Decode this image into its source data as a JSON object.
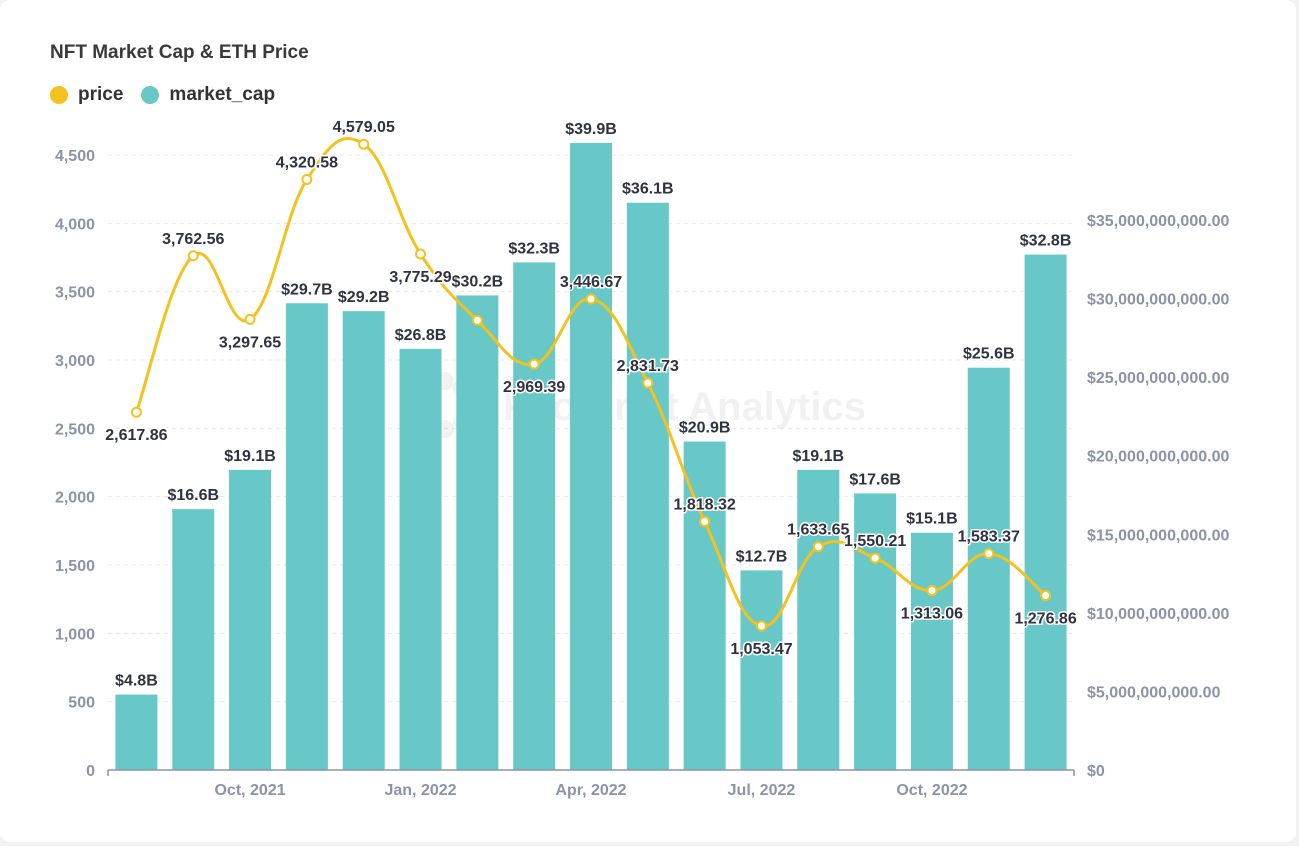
{
  "colors": {
    "price": "#f4c21f",
    "market_cap": "#67c8c7",
    "grid": "#e8e8ee",
    "axis": "#8c93a8"
  },
  "chart_data": {
    "type": "bar+line",
    "title": "NFT Market Cap & ETH Price",
    "legend": [
      {
        "name": "price",
        "color": "#f4c21f"
      },
      {
        "name": "market_cap",
        "color": "#67c8c7"
      }
    ],
    "x_tick_labels": [
      "Oct, 2021",
      "Jan, 2022",
      "Apr, 2022",
      "Jul, 2022",
      "Oct, 2022"
    ],
    "x_tick_indices": [
      2,
      5,
      8,
      11,
      14
    ],
    "left_axis": {
      "series": "price",
      "ylim": [
        0,
        4500
      ],
      "ticks": [
        "0",
        "500",
        "1,000",
        "1,500",
        "2,000",
        "2,500",
        "3,000",
        "3,500",
        "4,000",
        "4,500"
      ]
    },
    "right_axis": {
      "series": "market_cap",
      "ylim": [
        0,
        35000000000
      ],
      "ticks": [
        "$0",
        "$5,000,000,000.00",
        "$10,000,000,000.00",
        "$15,000,000,000.00",
        "$20,000,000,000.00",
        "$25,000,000,000.00",
        "$30,000,000,000.00",
        "$35,000,000,000.00"
      ]
    },
    "series": [
      {
        "name": "market_cap",
        "type": "bar",
        "values": [
          4.8,
          16.6,
          19.1,
          29.7,
          29.2,
          26.8,
          30.2,
          32.3,
          39.9,
          36.1,
          20.9,
          12.7,
          19.1,
          17.6,
          15.1,
          25.6,
          32.8
        ],
        "unit": "billion USD",
        "labels": [
          "$4.8B",
          "$16.6B",
          "$19.1B",
          "$29.7B",
          "$29.2B",
          "$26.8B",
          "$30.2B",
          "$32.3B",
          "$39.9B",
          "$36.1B",
          "$20.9B",
          "$12.7B",
          "$19.1B",
          "$17.6B",
          "$15.1B",
          "$25.6B",
          "$32.8B"
        ]
      },
      {
        "name": "price",
        "type": "line",
        "values": [
          2617.86,
          3762.56,
          3297.65,
          4320.58,
          4579.05,
          3775.29,
          3290,
          2969.39,
          3446.67,
          2831.73,
          1818.32,
          1053.47,
          1633.65,
          1550.21,
          1313.06,
          1583.37,
          1276.86
        ],
        "labels": [
          "2,617.86",
          "3,762.56",
          "3,297.65",
          "4,320.58",
          "4,579.05",
          "3,775.29",
          "",
          "2,969.39",
          "3,446.67",
          "2,831.73",
          "1,818.32",
          "1,053.47",
          "1,633.65",
          "1,550.21",
          "1,313.06",
          "1,583.37",
          "1,276.86"
        ]
      }
    ],
    "watermark": "Footprint Analytics"
  }
}
